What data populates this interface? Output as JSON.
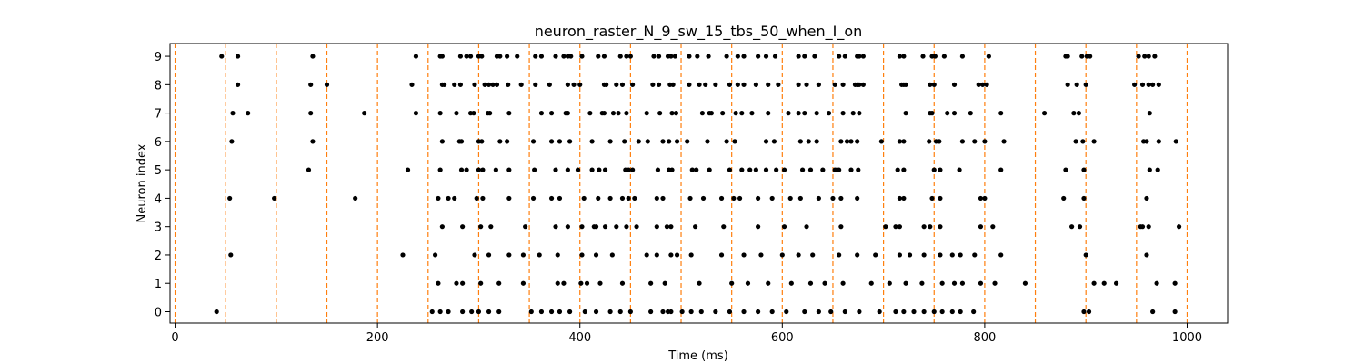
{
  "chart_data": {
    "type": "scatter",
    "title": "neuron_raster_N_9_sw_15_tbs_50_when_I_on",
    "xlabel": "Time (ms)",
    "ylabel": "Neuron index",
    "xlim": [
      -5,
      1040
    ],
    "ylim": [
      -0.4,
      9.45
    ],
    "xticks": [
      0,
      200,
      400,
      600,
      800,
      1000
    ],
    "yticks": [
      0,
      1,
      2,
      3,
      4,
      5,
      6,
      7,
      8,
      9
    ],
    "grid": false,
    "legend": "none",
    "marker_color": "#000000",
    "vline_color": "#ff7f0e",
    "vlines": [
      0,
      50,
      100,
      150,
      200,
      250,
      300,
      350,
      400,
      450,
      500,
      550,
      600,
      650,
      700,
      750,
      800,
      850,
      900,
      950,
      1000
    ],
    "spikes": [
      {
        "neuron": 9,
        "times": [
          46,
          62,
          136,
          238,
          262,
          264,
          282,
          288,
          292,
          300,
          303,
          318,
          321,
          328,
          338,
          356,
          362,
          376,
          384,
          388,
          391,
          402,
          418,
          424,
          440,
          446,
          450,
          473,
          478,
          487,
          490,
          494,
          508,
          516,
          527,
          545,
          556,
          562,
          576,
          584,
          593,
          616,
          622,
          632,
          656,
          662,
          674,
          676,
          680,
          716,
          720,
          739,
          748,
          751,
          760,
          778,
          804,
          880,
          882,
          896,
          901,
          904,
          952,
          958,
          962,
          968
        ]
      },
      {
        "neuron": 8,
        "times": [
          62,
          134,
          150,
          234,
          264,
          266,
          276,
          282,
          296,
          306,
          310,
          314,
          318,
          329,
          342,
          356,
          370,
          388,
          394,
          400,
          424,
          426,
          436,
          442,
          452,
          472,
          478,
          489,
          492,
          508,
          518,
          524,
          534,
          548,
          556,
          562,
          574,
          586,
          596,
          616,
          624,
          636,
          652,
          660,
          672,
          674,
          676,
          680,
          718,
          720,
          722,
          746,
          750,
          770,
          794,
          798,
          802,
          882,
          891,
          900,
          948,
          956,
          962,
          966,
          972
        ]
      },
      {
        "neuron": 7,
        "times": [
          57,
          72,
          134,
          187,
          238,
          262,
          278,
          292,
          295,
          309,
          311,
          330,
          362,
          372,
          388,
          386,
          410,
          422,
          424,
          433,
          438,
          446,
          466,
          479,
          491,
          495,
          521,
          528,
          530,
          541,
          554,
          560,
          570,
          586,
          606,
          616,
          622,
          634,
          646,
          660,
          676,
          670,
          722,
          746,
          748,
          763,
          770,
          786,
          816,
          859,
          888,
          893,
          963
        ]
      },
      {
        "neuron": 6,
        "times": [
          56,
          136,
          264,
          281,
          283,
          300,
          303,
          321,
          328,
          354,
          372,
          380,
          390,
          412,
          430,
          444,
          458,
          467,
          482,
          488,
          496,
          506,
          526,
          545,
          553,
          584,
          592,
          618,
          626,
          634,
          658,
          664,
          668,
          674,
          698,
          716,
          720,
          745,
          752,
          755,
          778,
          790,
          800,
          819,
          908,
          890,
          897,
          957,
          960,
          972,
          989
        ]
      },
      {
        "neuron": 5,
        "times": [
          132,
          230,
          262,
          283,
          288,
          300,
          304,
          317,
          330,
          355,
          376,
          388,
          398,
          412,
          419,
          425,
          445,
          448,
          452,
          477,
          488,
          491,
          511,
          515,
          528,
          548,
          560,
          568,
          574,
          584,
          594,
          602,
          620,
          628,
          640,
          652,
          654,
          656,
          668,
          675,
          714,
          720,
          750,
          756,
          775,
          816,
          880,
          898,
          963,
          971
        ]
      },
      {
        "neuron": 4,
        "times": [
          54,
          98,
          178,
          260,
          270,
          276,
          298,
          304,
          330,
          354,
          372,
          380,
          404,
          418,
          430,
          442,
          448,
          454,
          476,
          482,
          509,
          522,
          540,
          552,
          558,
          576,
          590,
          608,
          618,
          636,
          650,
          658,
          674,
          716,
          720,
          748,
          756,
          796,
          800,
          878,
          898,
          960
        ]
      },
      {
        "neuron": 3,
        "times": [
          264,
          284,
          302,
          312,
          346,
          376,
          388,
          402,
          414,
          416,
          425,
          436,
          446,
          456,
          476,
          486,
          490,
          514,
          542,
          576,
          602,
          624,
          658,
          702,
          712,
          716,
          740,
          746,
          756,
          796,
          808,
          886,
          894,
          954,
          956,
          962,
          992
        ]
      },
      {
        "neuron": 2,
        "times": [
          55,
          225,
          257,
          296,
          310,
          330,
          344,
          360,
          378,
          402,
          416,
          432,
          466,
          476,
          490,
          496,
          510,
          540,
          562,
          579,
          600,
          616,
          630,
          656,
          674,
          692,
          716,
          726,
          740,
          756,
          768,
          776,
          790,
          816,
          900,
          960
        ]
      },
      {
        "neuron": 1,
        "times": [
          260,
          278,
          284,
          302,
          320,
          344,
          378,
          384,
          401,
          407,
          420,
          442,
          470,
          484,
          518,
          550,
          566,
          586,
          609,
          628,
          642,
          660,
          688,
          706,
          722,
          738,
          758,
          770,
          778,
          796,
          810,
          840,
          908,
          918,
          930,
          970,
          988
        ]
      },
      {
        "neuron": 0,
        "times": [
          41,
          254,
          262,
          270,
          284,
          293,
          300,
          310,
          320,
          352,
          362,
          372,
          380,
          390,
          405,
          416,
          430,
          440,
          450,
          470,
          482,
          487,
          490,
          501,
          510,
          520,
          534,
          548,
          562,
          576,
          590,
          604,
          622,
          636,
          648,
          662,
          676,
          696,
          712,
          720,
          730,
          740,
          750,
          758,
          768,
          776,
          789,
          898,
          903,
          966,
          988
        ]
      }
    ]
  }
}
